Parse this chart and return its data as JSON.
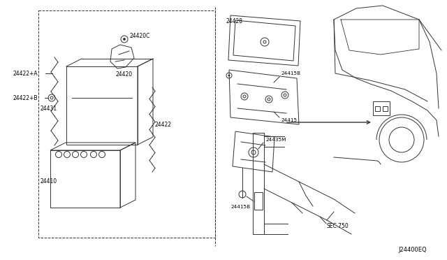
{
  "bg_color": "#ffffff",
  "line_color": "#333333",
  "label_color": "#000000",
  "diagram_code": "J24400EQ",
  "parts": {
    "battery_main": "24410",
    "battery_cover": "24431",
    "cable_pos": "24422+A",
    "cable_neg": "24422+B",
    "cable_rod": "24422",
    "terminal_pos": "24420",
    "terminal_neg": "24420C",
    "tray": "24428",
    "bracket": "24415",
    "bracket_b": "24415B",
    "stay_m": "24435M",
    "sec_label": "SEC.750"
  }
}
